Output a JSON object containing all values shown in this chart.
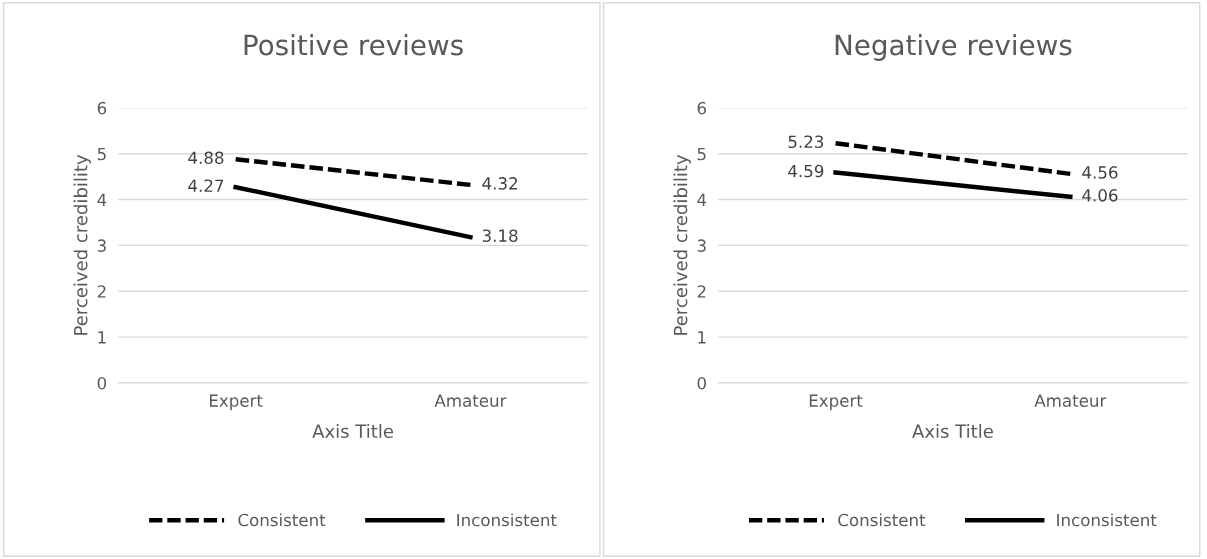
{
  "chart_data": [
    {
      "type": "line",
      "title": "Positive reviews",
      "xlabel": "Axis Title",
      "ylabel": "Perceived credibility",
      "categories": [
        "Expert",
        "Amateur"
      ],
      "series": [
        {
          "name": "Consistent",
          "color": "#000000",
          "values": [
            4.88,
            4.32
          ],
          "line_style": "dashed"
        },
        {
          "name": "Inconsistent",
          "color": "#000000",
          "values": [
            4.27,
            3.18
          ],
          "line_style": "solid"
        }
      ],
      "ylim": [
        0,
        6
      ],
      "yticks": [
        0,
        1,
        2,
        3,
        4,
        5,
        6
      ],
      "grid": "y",
      "legend": "bottom",
      "data_labels": true
    },
    {
      "type": "line",
      "title": "Negative reviews",
      "xlabel": "Axis Title",
      "ylabel": "Perceived credibility",
      "categories": [
        "Expert",
        "Amateur"
      ],
      "series": [
        {
          "name": "Consistent",
          "color": "#000000",
          "values": [
            5.23,
            4.56
          ],
          "line_style": "dashed"
        },
        {
          "name": "Inconsistent",
          "color": "#000000",
          "values": [
            4.59,
            4.06
          ],
          "line_style": "solid"
        }
      ],
      "ylim": [
        0,
        6
      ],
      "yticks": [
        0,
        1,
        2,
        3,
        4,
        5,
        6
      ],
      "grid": "y",
      "legend": "bottom",
      "data_labels": true
    }
  ]
}
